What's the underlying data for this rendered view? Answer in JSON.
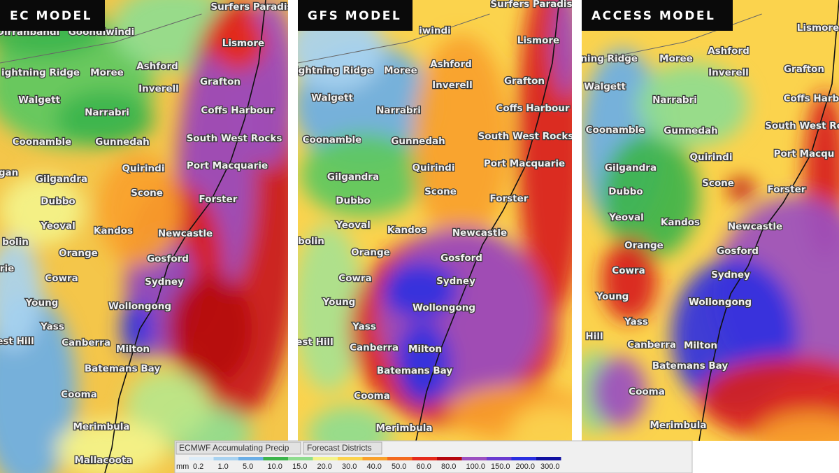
{
  "panels": [
    {
      "title": "EC MODEL",
      "places": [
        "Dirranbandi",
        "Goondiwindi",
        "Surfers Paradis",
        "Lismore",
        "ightning Ridge",
        "Moree",
        "Ashford",
        "Inverell",
        "Grafton",
        "Walgett",
        "Narrabri",
        "Coffs Harbour",
        "Coonamble",
        "Gunnedah",
        "South West Rocks",
        "Quirindi",
        "Port Macquarie",
        "gan",
        "Gilgandra",
        "Scone",
        "Dubbo",
        "Forster",
        "Yeoval",
        "Kandos",
        "Newcastle",
        "bolin",
        "Orange",
        "Gosford",
        "rie",
        "Cowra",
        "Sydney",
        "Young",
        "Wollongong",
        "Yass",
        "est Hill",
        "Canberra",
        "Milton",
        "Batemans Bay",
        "Cooma",
        "Merimbula",
        "Mallacoota"
      ]
    },
    {
      "title": "GFS MODEL",
      "places": [
        "iwindi",
        "Surfers Paradis",
        "Lismore",
        "ightning Ridge",
        "Moree",
        "Ashford",
        "Inverell",
        "Grafton",
        "Walgett",
        "Narrabri",
        "Coffs Harbour",
        "Coonamble",
        "Gunnedah",
        "South West Rocks",
        "Quirindi",
        "Port Macquarie",
        "Gilgandra",
        "Scone",
        "Dubbo",
        "Forster",
        "Yeoval",
        "Kandos",
        "Newcastle",
        "bolin",
        "Orange",
        "Gosford",
        "Cowra",
        "Sydney",
        "Young",
        "Wollongong",
        "Yass",
        "est Hill",
        "Canberra",
        "Milton",
        "Batemans Bay",
        "Cooma",
        "Merimbula"
      ]
    },
    {
      "title": "ACCESS MODEL",
      "places": [
        "Lismore",
        "Ashford",
        "tning Ridge",
        "Moree",
        "Inverell",
        "Grafton",
        "Walgett",
        "Narrabri",
        "Coffs Harbo",
        "Coonamble",
        "Gunnedah",
        "South West Ro",
        "Quirindi",
        "Port Macqu",
        "Gilgandra",
        "Scone",
        "Forster",
        "Dubbo",
        "Yeoval",
        "Kandos",
        "Newcastle",
        "Orange",
        "Gosford",
        "Cowra",
        "Sydney",
        "Young",
        "Wollongong",
        "Yass",
        "Hill",
        "Canberra",
        "Milton",
        "Batemans Bay",
        "Cooma",
        "Merimbula"
      ]
    }
  ],
  "legend": {
    "tabs": [
      "ECMWF Accumulating Precip",
      "Forecast Districts"
    ],
    "unit": "mm",
    "items": [
      {
        "label": "0.2",
        "color": "#dcecf8"
      },
      {
        "label": "1.0",
        "color": "#a8d2f0"
      },
      {
        "label": "5.0",
        "color": "#6aaee6"
      },
      {
        "label": "10.0",
        "color": "#3cb44b"
      },
      {
        "label": "15.0",
        "color": "#8fdc8f"
      },
      {
        "label": "20.0",
        "color": "#f3f38a"
      },
      {
        "label": "30.0",
        "color": "#fbd34d"
      },
      {
        "label": "40.0",
        "color": "#f9a12b"
      },
      {
        "label": "50.0",
        "color": "#f36a1f"
      },
      {
        "label": "60.0",
        "color": "#e52b1b"
      },
      {
        "label": "80.0",
        "color": "#b5060e"
      },
      {
        "label": "100.0",
        "color": "#9b4fc0"
      },
      {
        "label": "150.0",
        "color": "#6a3bd0"
      },
      {
        "label": "200.0",
        "color": "#2a2ee0"
      },
      {
        "label": "300.0",
        "color": "#1010a0"
      }
    ]
  }
}
